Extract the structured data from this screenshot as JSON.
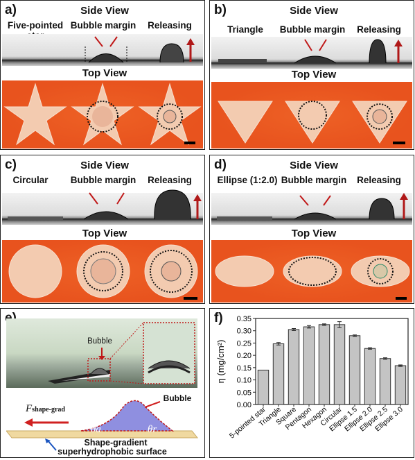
{
  "panels": {
    "a": {
      "label": "a)",
      "side_title": "Side View",
      "top_title": "Top View",
      "col1": "Five-pointed star",
      "col2": "Bubble margin",
      "col3": "Releasing"
    },
    "b": {
      "label": "b)",
      "side_title": "Side View",
      "top_title": "Top View",
      "col1": "Triangle",
      "col2": "Bubble margin",
      "col3": "Releasing"
    },
    "c": {
      "label": "c)",
      "side_title": "Side View",
      "top_title": "Top View",
      "col1": "Circular",
      "col2": "Bubble margin",
      "col3": "Releasing"
    },
    "d": {
      "label": "d)",
      "side_title": "Side View",
      "top_title": "Top View",
      "col1": "Ellipse (1:2.0)",
      "col2": "Bubble margin",
      "col3": "Releasing"
    },
    "e": {
      "label": "e)",
      "bubble_label": "Bubble",
      "bubble_label2": "Bubble",
      "force_label": "F",
      "force_sub": "shape-grad",
      "theta_a": "θa",
      "theta_r": "θr",
      "surface_line1": "Shape-gradient",
      "surface_line2": "superhydrophobic surface"
    },
    "f": {
      "label": "f)"
    }
  },
  "chart_data": {
    "type": "bar",
    "ylabel": "η (mg/cm²)",
    "ylim": [
      0,
      0.35
    ],
    "yticks": [
      "0.00",
      "0.05",
      "0.10",
      "0.15",
      "0.20",
      "0.25",
      "0.30",
      "0.35"
    ],
    "categories": [
      "5-pointed star",
      "Triangle",
      "Square",
      "Pentagon",
      "Hexagon",
      "Circular",
      "Ellipse 1.5",
      "Ellipse 2.0",
      "Ellipse 2.5",
      "Ellipse 3.0"
    ],
    "values": [
      0.14,
      0.247,
      0.305,
      0.316,
      0.325,
      0.325,
      0.28,
      0.228,
      0.187,
      0.158
    ],
    "errors": [
      0.0,
      0.005,
      0.004,
      0.005,
      0.003,
      0.012,
      0.003,
      0.003,
      0.003,
      0.003
    ],
    "bar_color": "#c4c4c4"
  }
}
